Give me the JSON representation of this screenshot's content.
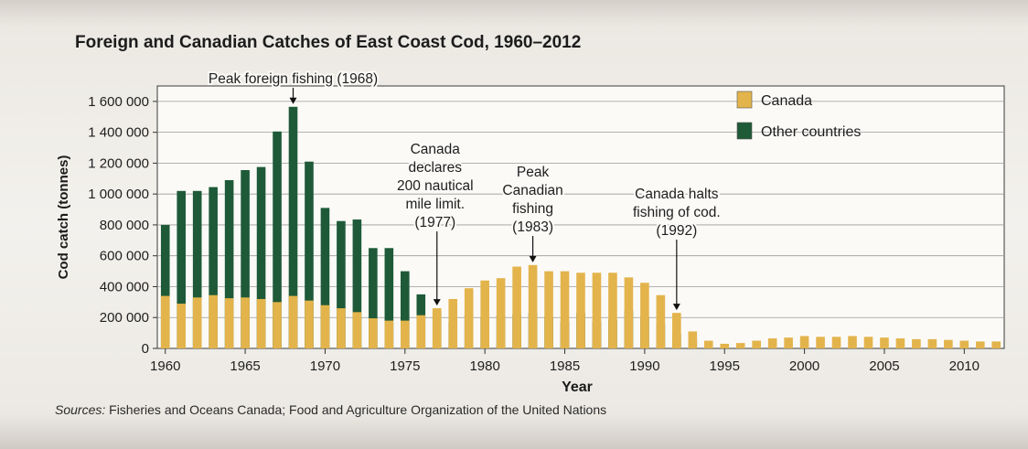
{
  "chart_data": {
    "type": "bar",
    "title": "Foreign and Canadian Catches of East Coast Cod, 1960–2012",
    "xlabel": "Year",
    "ylabel": "Cod catch (tonnes)",
    "ylim": [
      0,
      1700000
    ],
    "yticks": [
      "0",
      "200 000",
      "400 000",
      "600 000",
      "800 000",
      "1 000 000",
      "1 200 000",
      "1 400 000",
      "1 600 000"
    ],
    "xticks": [
      "1960",
      "1965",
      "1970",
      "1975",
      "1980",
      "1985",
      "1990",
      "1995",
      "2000",
      "2005",
      "2010"
    ],
    "grid": "horizontal",
    "legend_position": "top-right",
    "colors": {
      "Canada": "#e3b44c",
      "Other countries": "#1e5a38"
    },
    "categories": [
      1960,
      1961,
      1962,
      1963,
      1964,
      1965,
      1966,
      1967,
      1968,
      1969,
      1970,
      1971,
      1972,
      1973,
      1974,
      1975,
      1976,
      1977,
      1978,
      1979,
      1980,
      1981,
      1982,
      1983,
      1984,
      1985,
      1986,
      1987,
      1988,
      1989,
      1990,
      1991,
      1992,
      1993,
      1994,
      1995,
      1996,
      1997,
      1998,
      1999,
      2000,
      2001,
      2002,
      2003,
      2004,
      2005,
      2006,
      2007,
      2008,
      2009,
      2010,
      2011,
      2012
    ],
    "series": [
      {
        "name": "Canada",
        "values": [
          340000,
          290000,
          330000,
          345000,
          325000,
          330000,
          320000,
          300000,
          340000,
          310000,
          280000,
          260000,
          235000,
          195000,
          180000,
          180000,
          215000,
          260000,
          320000,
          390000,
          440000,
          455000,
          530000,
          540000,
          500000,
          500000,
          490000,
          490000,
          490000,
          460000,
          425000,
          345000,
          230000,
          110000,
          50000,
          30000,
          35000,
          50000,
          65000,
          70000,
          80000,
          75000,
          75000,
          80000,
          75000,
          70000,
          65000,
          60000,
          60000,
          55000,
          50000,
          45000,
          45000
        ]
      },
      {
        "name": "Other countries",
        "values": [
          800000,
          1020000,
          1020000,
          1045000,
          1090000,
          1155000,
          1175000,
          1405000,
          1565000,
          1210000,
          910000,
          825000,
          835000,
          650000,
          650000,
          500000,
          350000,
          240000,
          170000,
          220000,
          200000,
          215000,
          220000,
          230000,
          205000,
          175000,
          230000,
          175000,
          185000,
          245000,
          205000,
          160000,
          95000,
          60000,
          0,
          0,
          0,
          0,
          0,
          0,
          0,
          0,
          0,
          0,
          0,
          0,
          0,
          0,
          0,
          0,
          0,
          0,
          0
        ]
      }
    ],
    "annotations": [
      {
        "x": 1968,
        "lines": [
          "Peak foreign fishing (1968)"
        ]
      },
      {
        "x": 1977,
        "lines": [
          "Canada",
          "declares",
          "200 nautical",
          "mile limit.",
          "(1977)"
        ]
      },
      {
        "x": 1983,
        "lines": [
          "Peak",
          "Canadian",
          "fishing",
          "(1983)"
        ]
      },
      {
        "x": 1992,
        "lines": [
          "Canada halts",
          "fishing of cod.",
          "(1992)"
        ]
      }
    ]
  },
  "sources": {
    "lead": "Sources:",
    "text": " Fisheries and Oceans Canada; Food and Agriculture Organization of the United Nations"
  }
}
